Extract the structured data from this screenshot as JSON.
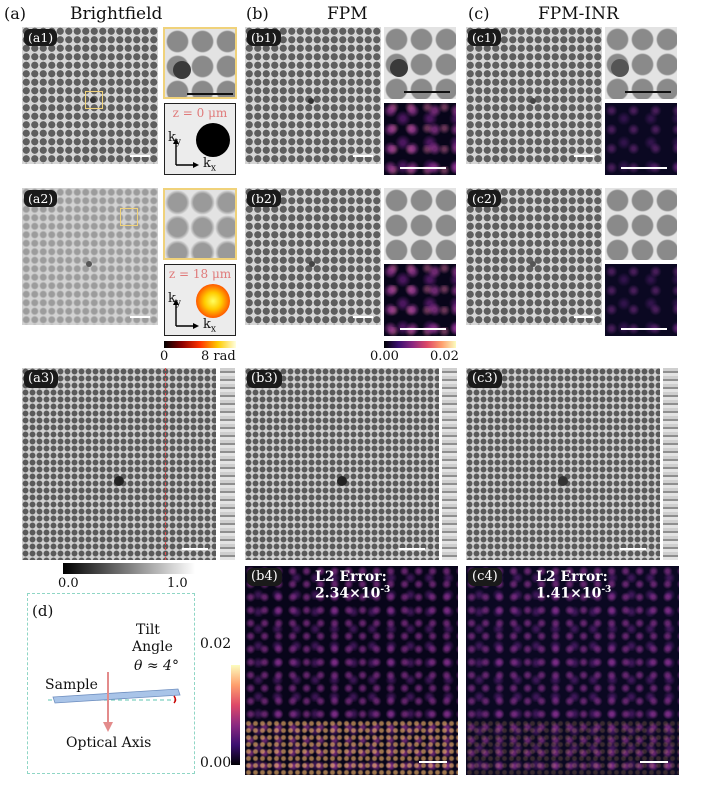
{
  "columns": {
    "a": {
      "letter": "(a)",
      "title": "Brightfield"
    },
    "b": {
      "letter": "(b)",
      "title": "FPM"
    },
    "c": {
      "letter": "(c)",
      "title": "FPM-INR"
    }
  },
  "panels": {
    "a1": "(a1)",
    "a2": "(a2)",
    "a3": "(a3)",
    "b1": "(b1)",
    "b2": "(b2)",
    "b3": "(b3)",
    "b4": "(b4)",
    "c1": "(c1)",
    "c2": "(c2)",
    "c3": "(c3)",
    "c4": "(c4)",
    "d": "(d)"
  },
  "pupil": {
    "top": {
      "z_label": "z = 0 μm",
      "ky": "k",
      "ky_sub": "y",
      "kx": "k",
      "kx_sub": "x"
    },
    "bottom": {
      "z_label": "z = 18 μm",
      "ky": "k",
      "ky_sub": "y",
      "kx": "k",
      "kx_sub": "x"
    }
  },
  "colorbars": {
    "phase": {
      "min": "0",
      "max": "8 rad",
      "colors": [
        "#000000",
        "#8b0000",
        "#ff3300",
        "#ffcc00",
        "#ffffe0"
      ]
    },
    "error_small": {
      "min": "0.00",
      "max": "0.02",
      "colors": [
        "#000004",
        "#3b0f70",
        "#8c2981",
        "#de4968",
        "#fe9f6d",
        "#fcfdbf"
      ]
    },
    "amplitude": {
      "min": "0.0",
      "max": "1.0",
      "colors": [
        "#000000",
        "#ffffff"
      ]
    },
    "error_large": {
      "min": "0.00",
      "max": "0.02",
      "colors": [
        "#000004",
        "#3b0f70",
        "#8c2981",
        "#de4968",
        "#fe9f6d",
        "#fcfdbf"
      ]
    }
  },
  "errors": {
    "b4": {
      "prefix": "L2 Error: 2.34×10",
      "exp": "-3"
    },
    "c4": {
      "prefix": "L2 Error: 1.41×10",
      "exp": "-3"
    }
  },
  "diagram": {
    "sample": "Sample",
    "tilt_line1": "Tilt",
    "tilt_line2": "Angle",
    "theta": "θ ≈ 4°",
    "optical_axis": "Optical Axis",
    "colors": {
      "border": "#8fd6c5",
      "slab": "#a9c4e8",
      "arrow": "#e38b8b",
      "dashed": "#7fd0c0"
    }
  },
  "accent": {
    "zoom_box": "#f0d27a",
    "line_profile": "#e05050",
    "pupil_text": "#e07a7a"
  }
}
